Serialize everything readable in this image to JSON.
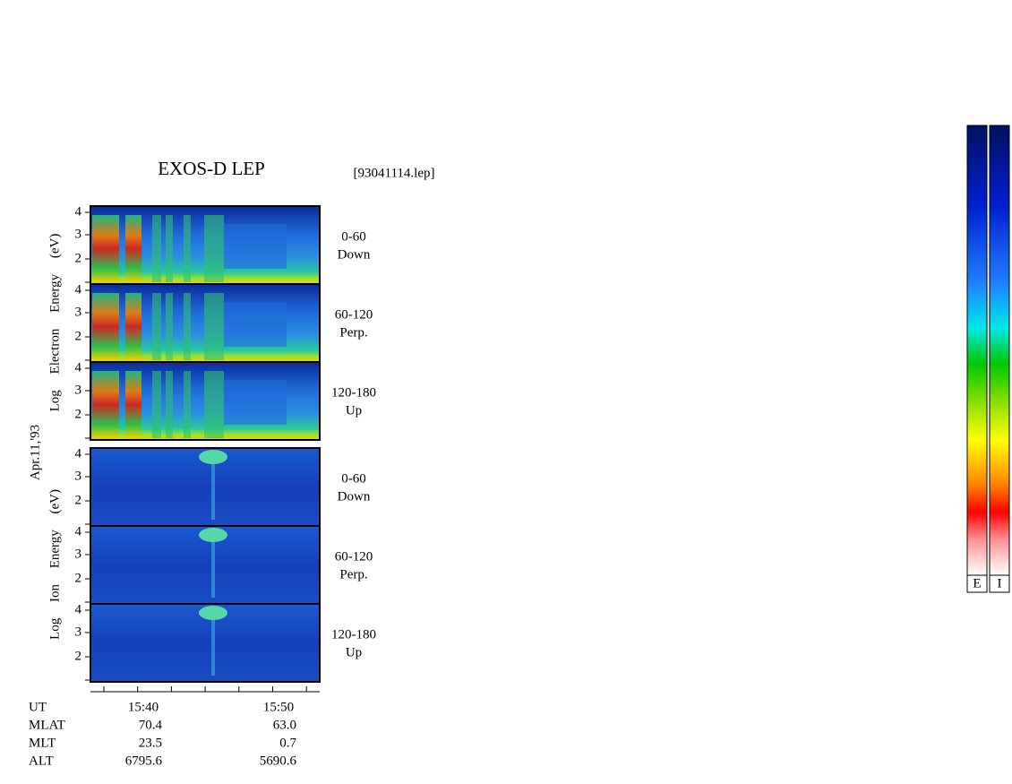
{
  "header": {
    "title": "EXOS-D LEP",
    "file": "[93041114.lep]"
  },
  "axes": {
    "date": "Apr.11,'93",
    "electron_label": "Log Electron Energy (eV)",
    "ion_label": "Log Ion Energy (eV)"
  },
  "panels": [
    {
      "species": "electron",
      "ticks": [
        "4",
        "3",
        "2"
      ],
      "angle": "0-60",
      "direction": "Down"
    },
    {
      "species": "electron",
      "ticks": [
        "4",
        "3",
        "2"
      ],
      "angle": "60-120",
      "direction": "Perp."
    },
    {
      "species": "electron",
      "ticks": [
        "4",
        "3",
        "2"
      ],
      "angle": "120-180",
      "direction": "Up"
    },
    {
      "species": "ion",
      "ticks": [
        "4",
        "3",
        "2"
      ],
      "angle": "0-60",
      "direction": "Down"
    },
    {
      "species": "ion",
      "ticks": [
        "4",
        "3",
        "2"
      ],
      "angle": "60-120",
      "direction": "Perp."
    },
    {
      "species": "ion",
      "ticks": [
        "4",
        "3",
        "2"
      ],
      "angle": "120-180",
      "direction": "Up"
    }
  ],
  "footer": {
    "rows": [
      [
        "UT",
        "15:40",
        "15:50"
      ],
      [
        "MLAT",
        "70.4",
        "63.0"
      ],
      [
        "MLT",
        "23.5",
        "0.7"
      ],
      [
        "ALT",
        "6795.6",
        "5690.6"
      ]
    ]
  },
  "colorbars": [
    "E",
    "I"
  ]
}
